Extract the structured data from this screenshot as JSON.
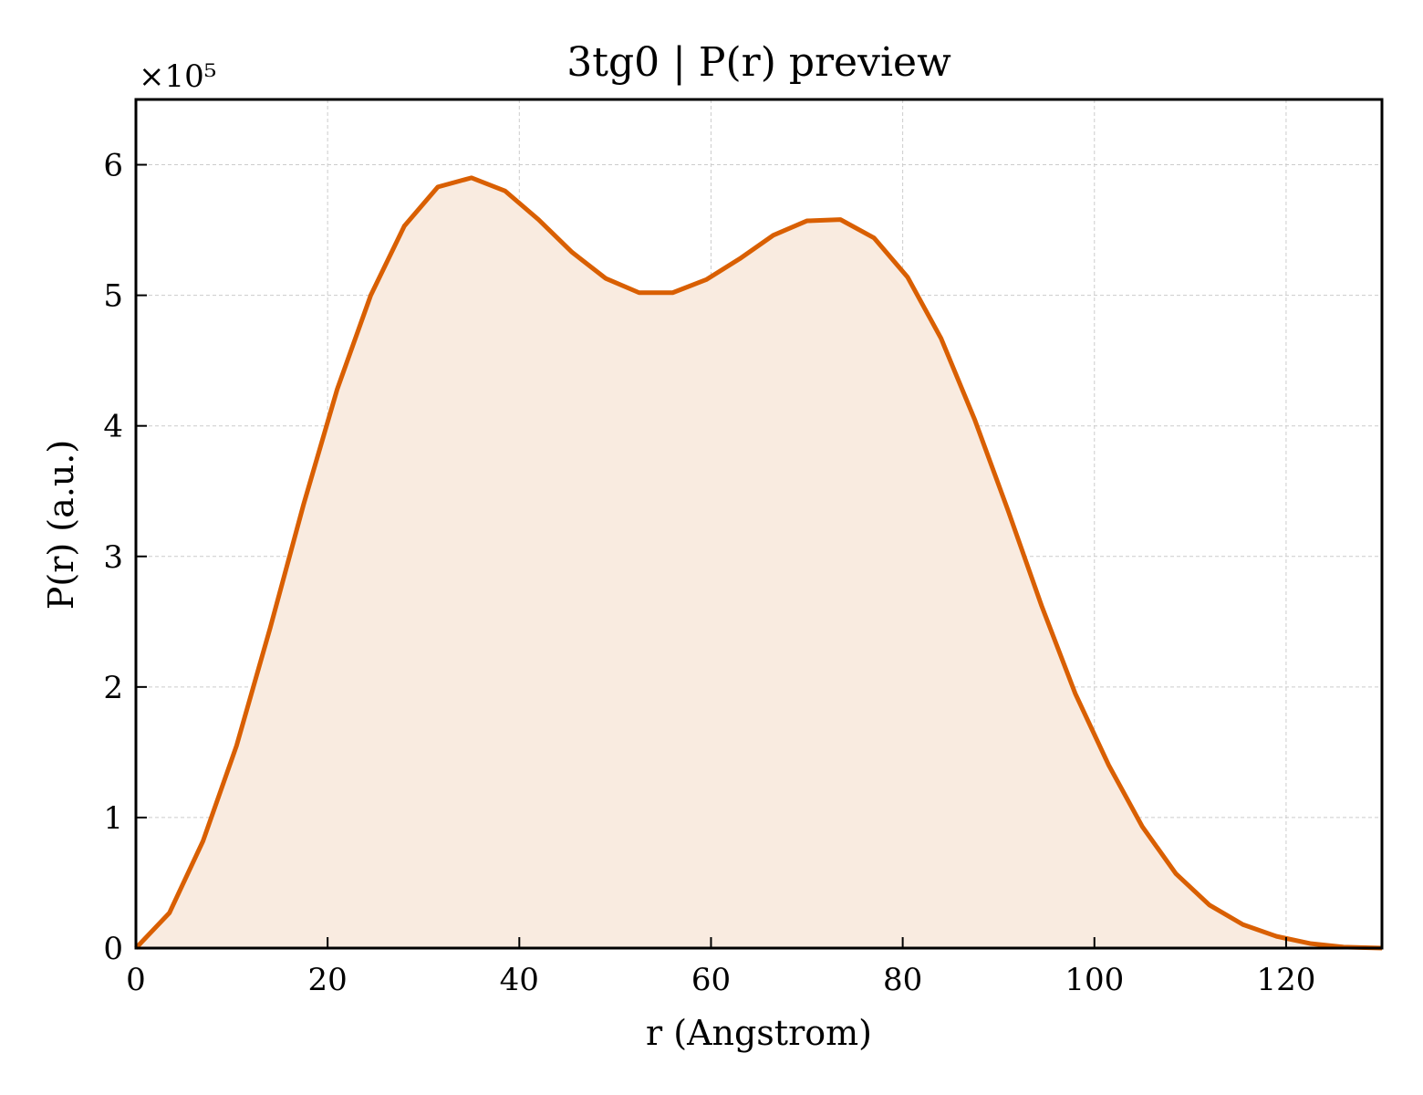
{
  "chart_data": {
    "type": "area",
    "title": "3tg0 | P(r) preview",
    "xlabel": "r (Angstrom)",
    "ylabel": "P(r) (a.u.)",
    "y_multiplier_label": "×10⁵",
    "y_scale_factor": 100000,
    "xlim": [
      0,
      130
    ],
    "ylim": [
      0,
      650000
    ],
    "x_ticks": [
      0,
      20,
      40,
      60,
      80,
      100,
      120
    ],
    "y_ticks": [
      0,
      100000,
      200000,
      300000,
      400000,
      500000,
      600000
    ],
    "grid": true,
    "legend": "none",
    "line_color": "#d95f02",
    "fill_color": "#f9ebe0",
    "series": [
      {
        "x": [
          0,
          3.5,
          7,
          10.5,
          14,
          17.5,
          21,
          24.5,
          28,
          31.5,
          35,
          38.5,
          42,
          45.5,
          49,
          52.5,
          56,
          59.5,
          63,
          66.5,
          70,
          73.5,
          77,
          80.5,
          84,
          87.5,
          91,
          94.5,
          98,
          101.5,
          105,
          108.5,
          112,
          115.5,
          119,
          122.5,
          126,
          130
        ],
        "values": [
          0,
          27000,
          82000,
          155000,
          245000,
          340000,
          428000,
          500000,
          553000,
          583000,
          590000,
          580000,
          558000,
          533000,
          513000,
          502000,
          502000,
          512000,
          528000,
          546000,
          557000,
          558000,
          544000,
          514000,
          467000,
          405000,
          335000,
          262000,
          195000,
          140000,
          93000,
          57000,
          33000,
          18000,
          9000,
          3500,
          800,
          0
        ]
      }
    ]
  }
}
